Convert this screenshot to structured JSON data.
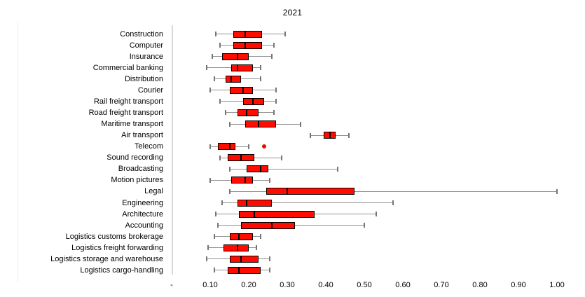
{
  "title": "2021",
  "colors": {
    "box_fill": "#ff0b00",
    "box_border": "#000000",
    "median_line": "#000000",
    "whisker": "#929292",
    "axis_line": "#d9d9d9",
    "text": "#000000",
    "background": "#ffffff",
    "outlier": "#e01000"
  },
  "chart_data": {
    "type": "boxplot",
    "orientation": "horizontal",
    "title": "2021",
    "xlabel": "",
    "ylabel": "",
    "xlim": [
      0,
      1.0
    ],
    "grid": false,
    "legend": false,
    "x_tick_labels": [
      "-",
      "0.10",
      "0.20",
      "0.30",
      "0.40",
      "0.50",
      "0.60",
      "0.70",
      "0.80",
      "0.90",
      "1.00"
    ],
    "x_tick_values": [
      0,
      0.1,
      0.2,
      0.3,
      0.4,
      0.5,
      0.6,
      0.7,
      0.8,
      0.9,
      1.0
    ],
    "categories": [
      "Construction",
      "Computer",
      "Insurance",
      "Commercial banking",
      "Distribution",
      "Courier",
      "Rail freight transport",
      "Road freight transport",
      "Maritime transport",
      "Air transport",
      "Telecom",
      "Sound recording",
      "Broadcasting",
      "Motion pictures",
      "Legal",
      "Engineering",
      "Architecture",
      "Accounting",
      "Logistics customs brokerage",
      "Logistics freight forwarding",
      "Logistics storage and warehouse",
      "Logistics cargo-handling"
    ],
    "boxes": [
      {
        "category": "Construction",
        "whisker_min": 0.115,
        "q1": 0.16,
        "median": 0.19,
        "q3": 0.235,
        "whisker_max": 0.295,
        "outliers": []
      },
      {
        "category": "Computer",
        "whisker_min": 0.125,
        "q1": 0.16,
        "median": 0.19,
        "q3": 0.235,
        "whisker_max": 0.265,
        "outliers": []
      },
      {
        "category": "Insurance",
        "whisker_min": 0.105,
        "q1": 0.13,
        "median": 0.17,
        "q3": 0.2,
        "whisker_max": 0.26,
        "outliers": []
      },
      {
        "category": "Commercial banking",
        "whisker_min": 0.09,
        "q1": 0.155,
        "median": 0.17,
        "q3": 0.21,
        "whisker_max": 0.23,
        "outliers": []
      },
      {
        "category": "Distribution",
        "whisker_min": 0.11,
        "q1": 0.14,
        "median": 0.155,
        "q3": 0.18,
        "whisker_max": 0.23,
        "outliers": []
      },
      {
        "category": "Courier",
        "whisker_min": 0.1,
        "q1": 0.15,
        "median": 0.185,
        "q3": 0.21,
        "whisker_max": 0.27,
        "outliers": []
      },
      {
        "category": "Rail freight transport",
        "whisker_min": 0.125,
        "q1": 0.185,
        "median": 0.21,
        "q3": 0.24,
        "whisker_max": 0.27,
        "outliers": []
      },
      {
        "category": "Road freight transport",
        "whisker_min": 0.14,
        "q1": 0.17,
        "median": 0.195,
        "q3": 0.225,
        "whisker_max": 0.265,
        "outliers": []
      },
      {
        "category": "Maritime transport",
        "whisker_min": 0.15,
        "q1": 0.19,
        "median": 0.225,
        "q3": 0.27,
        "whisker_max": 0.335,
        "outliers": []
      },
      {
        "category": "Air transport",
        "whisker_min": 0.36,
        "q1": 0.395,
        "median": 0.41,
        "q3": 0.425,
        "whisker_max": 0.46,
        "outliers": []
      },
      {
        "category": "Telecom",
        "whisker_min": 0.1,
        "q1": 0.12,
        "median": 0.15,
        "q3": 0.165,
        "whisker_max": 0.2,
        "outliers": [
          0.24
        ]
      },
      {
        "category": "Sound recording",
        "whisker_min": 0.125,
        "q1": 0.145,
        "median": 0.18,
        "q3": 0.215,
        "whisker_max": 0.285,
        "outliers": []
      },
      {
        "category": "Broadcasting",
        "whisker_min": 0.15,
        "q1": 0.195,
        "median": 0.23,
        "q3": 0.25,
        "whisker_max": 0.43,
        "outliers": []
      },
      {
        "category": "Motion pictures",
        "whisker_min": 0.1,
        "q1": 0.155,
        "median": 0.19,
        "q3": 0.21,
        "whisker_max": 0.255,
        "outliers": []
      },
      {
        "category": "Legal",
        "whisker_min": 0.15,
        "q1": 0.245,
        "median": 0.3,
        "q3": 0.475,
        "whisker_max": 1.0,
        "outliers": []
      },
      {
        "category": "Engineering",
        "whisker_min": 0.13,
        "q1": 0.17,
        "median": 0.195,
        "q3": 0.26,
        "whisker_max": 0.575,
        "outliers": []
      },
      {
        "category": "Architecture",
        "whisker_min": 0.115,
        "q1": 0.175,
        "median": 0.215,
        "q3": 0.37,
        "whisker_max": 0.53,
        "outliers": []
      },
      {
        "category": "Accounting",
        "whisker_min": 0.12,
        "q1": 0.18,
        "median": 0.26,
        "q3": 0.32,
        "whisker_max": 0.5,
        "outliers": []
      },
      {
        "category": "Logistics customs brokerage",
        "whisker_min": 0.11,
        "q1": 0.15,
        "median": 0.175,
        "q3": 0.21,
        "whisker_max": 0.23,
        "outliers": []
      },
      {
        "category": "Logistics freight forwarding",
        "whisker_min": 0.095,
        "q1": 0.135,
        "median": 0.17,
        "q3": 0.2,
        "whisker_max": 0.22,
        "outliers": []
      },
      {
        "category": "Logistics storage and warehouse",
        "whisker_min": 0.09,
        "q1": 0.15,
        "median": 0.18,
        "q3": 0.225,
        "whisker_max": 0.255,
        "outliers": []
      },
      {
        "category": "Logistics cargo-handling",
        "whisker_min": 0.11,
        "q1": 0.145,
        "median": 0.175,
        "q3": 0.23,
        "whisker_max": 0.255,
        "outliers": []
      }
    ]
  }
}
